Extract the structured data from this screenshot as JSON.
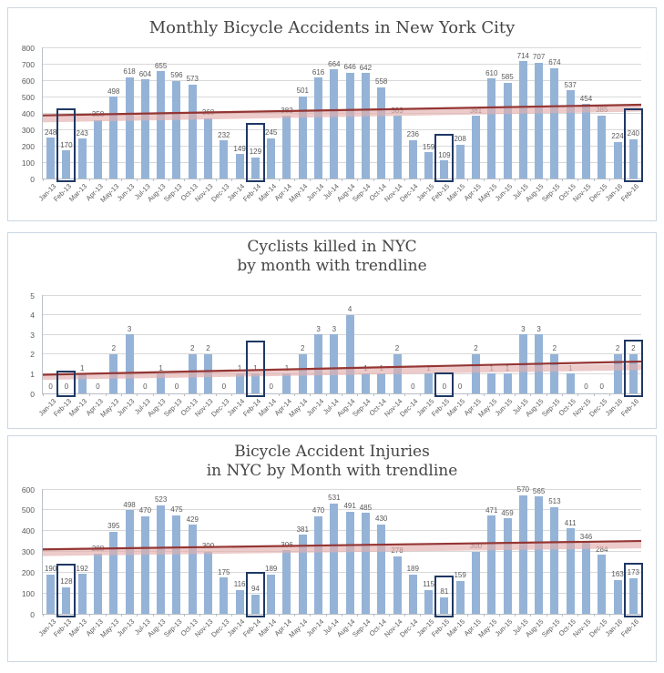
{
  "page": {
    "description": "Three stacked bar charts of NYC bicycle statistics with red trendlines and dark navy boxes highlighting each February",
    "background": "#ffffff"
  },
  "colors": {
    "bar": "#95b3d7",
    "trendline_dark": "#943634",
    "trendline_band": "#e3b0ae",
    "highlight_box": "#1f3864",
    "gridline": "#d9d9d9",
    "axis_text": "#595959",
    "title_text": "#454545",
    "panel_border": "#ccd7e2"
  },
  "highlighted_months": [
    "Feb-13",
    "Feb-14",
    "Feb-15",
    "Feb-16"
  ],
  "chart_data": [
    {
      "type": "bar",
      "title": "Monthly Bicycle Accidents in New York City",
      "title_lines": [
        "Monthly Bicycle Accidents in New York City"
      ],
      "xlabel": "",
      "ylabel": "",
      "ylim": [
        0,
        800
      ],
      "ytick_step": 100,
      "grid": true,
      "legend": null,
      "categories": [
        "Jan-13",
        "Feb-13",
        "Mar-13",
        "Apr-13",
        "May-13",
        "Jun-13",
        "Jul-13",
        "Aug-13",
        "Sep-13",
        "Oct-13",
        "Nov-13",
        "Dec-13",
        "Jan-14",
        "Feb-14",
        "Mar-14",
        "Apr-14",
        "May-14",
        "Jun-14",
        "Jul-14",
        "Aug-14",
        "Sep-14",
        "Oct-14",
        "Nov-14",
        "Dec-14",
        "Jan-15",
        "Feb-15",
        "Mar-15",
        "Apr-15",
        "May-15",
        "Jun-15",
        "Jul-15",
        "Aug-15",
        "Sep-15",
        "Oct-15",
        "Nov-15",
        "Dec-15",
        "Jan-16",
        "Feb-16"
      ],
      "values": [
        248,
        170,
        243,
        358,
        498,
        618,
        604,
        655,
        596,
        573,
        368,
        232,
        149,
        129,
        245,
        382,
        501,
        616,
        664,
        646,
        642,
        558,
        383,
        236,
        159,
        109,
        208,
        381,
        610,
        585,
        714,
        707,
        674,
        537,
        454,
        385,
        224,
        240
      ],
      "trendline": {
        "start": 385,
        "end": 450
      },
      "trend_band": {
        "start": 362,
        "end": 428
      },
      "highlighted_months": [
        "Feb-13",
        "Feb-14",
        "Feb-15",
        "Feb-16"
      ]
    },
    {
      "type": "bar",
      "title": "Cyclists killed in NYC by month with trendline",
      "title_lines": [
        "Cyclists killed in NYC",
        "by month with trendline"
      ],
      "xlabel": "",
      "ylabel": "",
      "ylim": [
        0,
        5
      ],
      "ytick_step": 1,
      "grid": true,
      "legend": null,
      "categories": [
        "Jan-13",
        "Feb-13",
        "Mar-13",
        "Apr-13",
        "May-13",
        "Jun-13",
        "Jul-13",
        "Aug-13",
        "Sep-13",
        "Oct-13",
        "Nov-13",
        "Dec-13",
        "Jan-14",
        "Feb-14",
        "Mar-14",
        "Apr-14",
        "May-14",
        "Jun-14",
        "Jul-14",
        "Aug-14",
        "Sep-14",
        "Oct-14",
        "Nov-14",
        "Dec-14",
        "Jan-15",
        "Feb-15",
        "Mar-15",
        "Apr-15",
        "May-15",
        "Jun-15",
        "Jul-15",
        "Aug-15",
        "Sep-15",
        "Oct-15",
        "Nov-15",
        "Dec-15",
        "Jan-16",
        "Feb-16"
      ],
      "values": [
        0,
        0,
        1,
        0,
        2,
        3,
        0,
        1,
        0,
        2,
        2,
        0,
        1,
        1,
        0,
        1,
        2,
        3,
        3,
        4,
        1,
        1,
        2,
        0,
        1,
        0,
        0,
        2,
        1,
        1,
        3,
        3,
        2,
        1,
        0,
        0,
        2,
        2
      ],
      "trendline": {
        "start": 0.95,
        "end": 1.62
      },
      "trend_band": {
        "start": 0.85,
        "end": 1.35
      },
      "highlighted_months": [
        "Feb-13",
        "Feb-14",
        "Feb-15",
        "Feb-16"
      ]
    },
    {
      "type": "bar",
      "title": "Bicycle Accident Injuries in NYC by Month with trendline",
      "title_lines": [
        "Bicycle Accident Injuries",
        "in NYC by Month with trendline"
      ],
      "xlabel": "",
      "ylabel": "",
      "ylim": [
        0,
        600
      ],
      "ytick_step": 100,
      "grid": true,
      "legend": null,
      "categories": [
        "Jan-13",
        "Feb-13",
        "Mar-13",
        "Apr-13",
        "May-13",
        "Jun-13",
        "Jul-13",
        "Aug-13",
        "Sep-13",
        "Oct-13",
        "Nov-13",
        "Dec-13",
        "Jan-14",
        "Feb-14",
        "Mar-14",
        "Apr-14",
        "May-14",
        "Jun-14",
        "Jul-14",
        "Aug-14",
        "Sep-14",
        "Oct-14",
        "Nov-14",
        "Dec-14",
        "Jan-15",
        "Feb-15",
        "Mar-15",
        "Apr-15",
        "May-15",
        "Jun-15",
        "Jul-15",
        "Aug-15",
        "Sep-15",
        "Oct-15",
        "Nov-15",
        "Dec-15",
        "Jan-16",
        "Feb-16"
      ],
      "values": [
        190,
        128,
        192,
        288,
        395,
        498,
        470,
        523,
        475,
        429,
        300,
        175,
        116,
        94,
        189,
        306,
        381,
        470,
        531,
        491,
        485,
        430,
        278,
        189,
        115,
        81,
        159,
        300,
        471,
        459,
        570,
        565,
        513,
        411,
        346,
        284,
        163,
        173
      ],
      "trendline": {
        "start": 310,
        "end": 350
      },
      "trend_band": {
        "start": 293,
        "end": 330
      },
      "highlighted_months": [
        "Feb-13",
        "Feb-14",
        "Feb-15",
        "Feb-16"
      ]
    }
  ]
}
